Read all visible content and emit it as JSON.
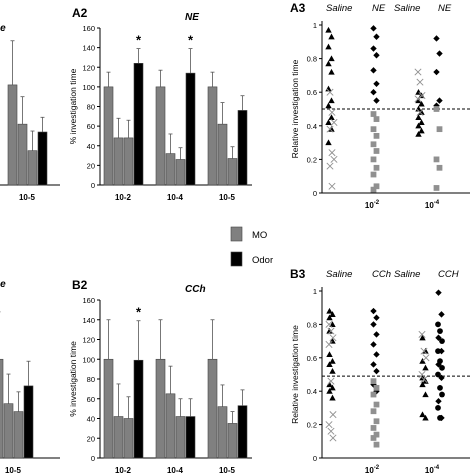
{
  "chart_data": [
    {
      "id": "A1",
      "type": "bar",
      "title": "ne",
      "panel_label": "",
      "categories": [
        "10-5"
      ],
      "series": [
        {
          "values": [
            [
              102,
              62,
              35,
              54
            ]
          ],
          "errors": [
            [
              45,
              28,
              20,
              15
            ]
          ]
        }
      ],
      "ylim": [
        0,
        140
      ]
    },
    {
      "id": "A2",
      "type": "bar",
      "panel_label": "A2",
      "title": "NE",
      "ylabel": "% investigation time",
      "yticks": [
        "0",
        "20",
        "40",
        "60",
        "80",
        "100",
        "120",
        "140",
        "160"
      ],
      "ylim": [
        0,
        160
      ],
      "categories": [
        "10-2",
        "10-4",
        "10-5"
      ],
      "bars": [
        [
          100,
          48,
          48,
          124
        ],
        [
          100,
          32,
          26,
          114
        ],
        [
          100,
          62,
          27,
          76
        ]
      ],
      "errors": [
        [
          15,
          20,
          18,
          15
        ],
        [
          17,
          20,
          12,
          25
        ],
        [
          15,
          22,
          12,
          15
        ]
      ],
      "bar_colors": [
        "#808080",
        "#808080",
        "#808080",
        "#000000"
      ],
      "significance": [
        "*",
        "*",
        ""
      ]
    },
    {
      "id": "A3",
      "type": "scatter",
      "panel_label": "A3",
      "ylabel": "Relative investigation time",
      "yticks": [
        "0",
        "0.2",
        "0.4",
        "0.6",
        "0.8",
        "1"
      ],
      "ylim": [
        0,
        1
      ],
      "group_labels": [
        "Saline",
        "NE",
        "Saline",
        "NE"
      ],
      "categories": [
        "10",
        "10"
      ],
      "category_superscripts": [
        "-2",
        "-4"
      ],
      "reference_line": 0.5,
      "columns": [
        {
          "marker": "triangle",
          "values": [
            0.97,
            0.93,
            0.87,
            0.8,
            0.77,
            0.72,
            0.62,
            0.55,
            0.52,
            0.45,
            0.42,
            0.38,
            0.3
          ]
        },
        {
          "marker": "cross",
          "values": [
            0.6,
            0.48,
            0.42,
            0.38,
            0.24,
            0.2,
            0.16,
            0.04
          ]
        },
        {
          "marker": "diamond",
          "values": [
            0.98,
            0.93,
            0.86,
            0.82,
            0.73,
            0.65,
            0.6,
            0.55
          ]
        },
        {
          "marker": "square",
          "values": [
            0.47,
            0.44,
            0.38,
            0.34,
            0.29,
            0.25,
            0.2,
            0.15,
            0.11,
            0.04,
            0.02
          ]
        },
        {
          "marker": "triangle",
          "values": [
            0.6,
            0.58,
            0.55,
            0.53,
            0.5,
            0.48,
            0.45,
            0.42,
            0.4,
            0.37,
            0.35
          ]
        },
        {
          "marker": "cross",
          "values": [
            0.72,
            0.66,
            0.58,
            0.56,
            0.48
          ]
        },
        {
          "marker": "diamond",
          "values": [
            0.92,
            0.83,
            0.72,
            0.55,
            0.52
          ]
        },
        {
          "marker": "square",
          "values": [
            0.5,
            0.38,
            0.2,
            0.15,
            0.03
          ]
        }
      ]
    },
    {
      "id": "B1",
      "type": "bar",
      "title": "ne",
      "panel_label": "",
      "categories": [
        "10-5"
      ],
      "series": [
        {
          "values": [
            [
              100,
              55,
              47,
              73
            ]
          ],
          "errors": [
            [
              48,
              30,
              20,
              25
            ]
          ]
        }
      ],
      "ylim": [
        0,
        140
      ]
    },
    {
      "id": "B2",
      "type": "bar",
      "panel_label": "B2",
      "title": "CCh",
      "ylabel": "% investigation time",
      "yticks": [
        "0",
        "20",
        "40",
        "60",
        "80",
        "100",
        "120",
        "140",
        "160"
      ],
      "ylim": [
        0,
        160
      ],
      "categories": [
        "10-2",
        "10-4",
        "10-5"
      ],
      "bars": [
        [
          100,
          42,
          40,
          99
        ],
        [
          100,
          65,
          42,
          42
        ],
        [
          100,
          52,
          35,
          53
        ]
      ],
      "errors": [
        [
          40,
          33,
          22,
          40
        ],
        [
          40,
          28,
          18,
          18
        ],
        [
          40,
          22,
          12,
          16
        ]
      ],
      "bar_colors": [
        "#808080",
        "#808080",
        "#808080",
        "#000000"
      ],
      "significance": [
        "*",
        "",
        ""
      ]
    },
    {
      "id": "B3",
      "type": "scatter",
      "panel_label": "B3",
      "ylabel": "Relative investigation time",
      "yticks": [
        "0",
        "0.2",
        "0.4",
        "0.6",
        "0.8",
        "1"
      ],
      "ylim": [
        0,
        1
      ],
      "group_labels": [
        "Saline",
        "CCh",
        "Saline",
        "CCH"
      ],
      "categories": [
        "10",
        "10"
      ],
      "category_superscripts": [
        "-2",
        "-4"
      ],
      "reference_line": 0.49,
      "columns": [
        {
          "marker": "triangle",
          "values": [
            0.88,
            0.86,
            0.84,
            0.8,
            0.76,
            0.7,
            0.62,
            0.58,
            0.56,
            0.52,
            0.44,
            0.42,
            0.4,
            0.36
          ]
        },
        {
          "marker": "cross",
          "values": [
            0.8,
            0.76,
            0.72,
            0.68,
            0.46,
            0.26,
            0.2,
            0.16,
            0.12
          ]
        },
        {
          "marker": "diamond",
          "values": [
            0.88,
            0.84,
            0.8,
            0.74,
            0.68,
            0.62,
            0.56,
            0.52,
            0.44,
            0.4
          ]
        },
        {
          "marker": "square",
          "values": [
            0.46,
            0.42,
            0.38,
            0.32,
            0.28,
            0.22,
            0.18,
            0.14,
            0.12,
            0.08
          ]
        },
        {
          "marker": "triangle",
          "values": [
            0.72,
            0.64,
            0.58,
            0.54,
            0.48,
            0.46,
            0.44,
            0.38,
            0.26,
            0.24
          ]
        },
        {
          "marker": "cross",
          "values": [
            0.74,
            0.64,
            0.6,
            0.5,
            0.47
          ]
        },
        {
          "marker": "diamond",
          "values": [
            0.99,
            0.86,
            0.72,
            0.64,
            0.56,
            0.48,
            0.34,
            0.24
          ]
        },
        {
          "marker": "circle",
          "values": [
            0.8,
            0.76,
            0.7,
            0.64,
            0.58,
            0.54,
            0.5,
            0.42,
            0.38,
            0.3,
            0.24
          ]
        }
      ]
    }
  ],
  "legend": {
    "entries": [
      {
        "label": "MO",
        "color": "#808080"
      },
      {
        "label": "Odor",
        "color": "#000000"
      }
    ]
  }
}
